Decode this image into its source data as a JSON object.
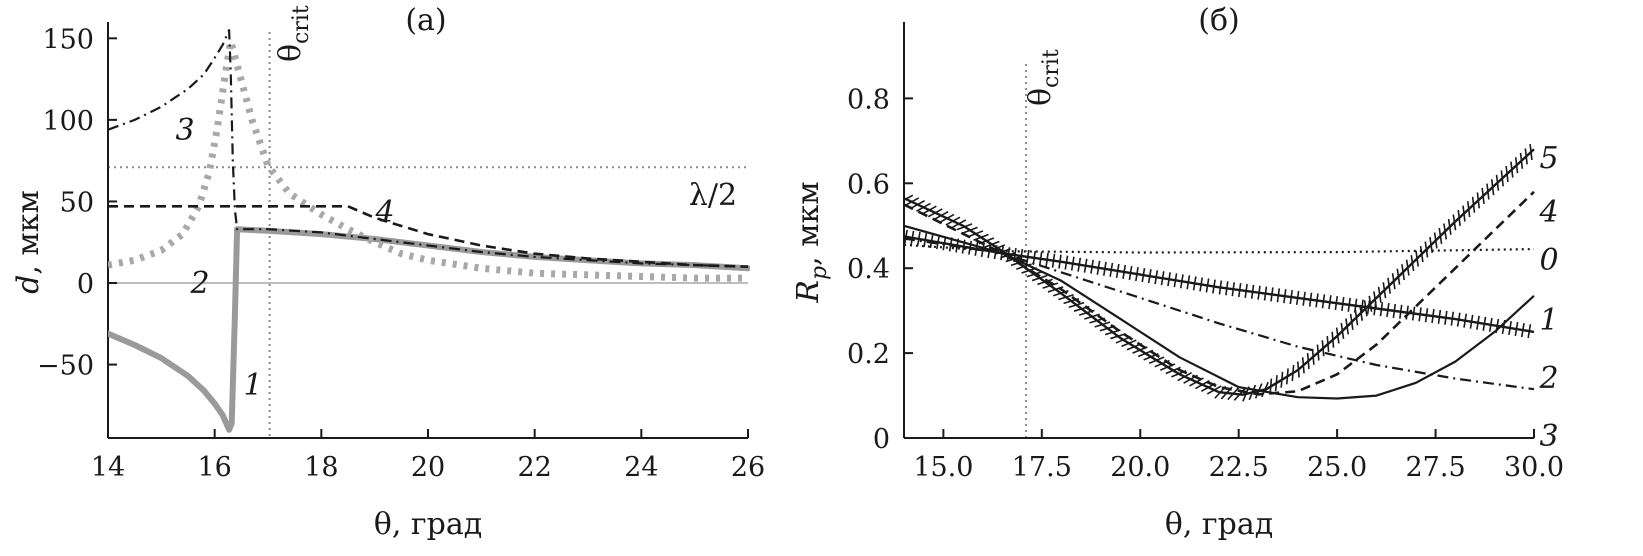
{
  "chart_data": [
    {
      "panel": "(a)",
      "type": "line",
      "xlabel": "θ, град",
      "ylabel_symbol": "d",
      "ylabel_unit": ", мкм",
      "xlim": [
        14,
        26
      ],
      "ylim": [
        -95,
        160
      ],
      "xticks": [
        "14",
        "16",
        "18",
        "20",
        "22",
        "24",
        "26"
      ],
      "yticks": [
        "150",
        "100",
        "50",
        "0",
        "−50"
      ],
      "xtick_values": [
        14,
        16,
        18,
        20,
        22,
        24,
        26
      ],
      "ytick_values": [
        150,
        100,
        50,
        0,
        -50
      ],
      "critical_angle": {
        "label_main": "θ",
        "label_sub": "crit",
        "x": 17.03
      },
      "reference_line": {
        "label": "λ/2",
        "y": 71
      },
      "zero_line": {
        "y": 0,
        "color": "#bdbdbd"
      },
      "series": [
        {
          "name": "1",
          "style": "solid-thick",
          "color": "#9a9a9a",
          "points": [
            [
              14,
              -31
            ],
            [
              14.5,
              -38
            ],
            [
              15.0,
              -46
            ],
            [
              15.5,
              -57
            ],
            [
              15.8,
              -66
            ],
            [
              16.0,
              -74
            ],
            [
              16.15,
              -81
            ],
            [
              16.27,
              -90
            ],
            [
              16.32,
              -86
            ],
            [
              16.38,
              -20
            ],
            [
              16.42,
              33
            ],
            [
              17.0,
              32
            ],
            [
              18.0,
              30
            ],
            [
              19.0,
              27
            ],
            [
              20.0,
              23
            ],
            [
              21.0,
              19
            ],
            [
              22.0,
              16
            ],
            [
              23.0,
              14
            ],
            [
              24.0,
              12
            ],
            [
              25.0,
              11
            ],
            [
              26.0,
              9
            ]
          ]
        },
        {
          "name": "2",
          "style": "dotted-thick",
          "color": "#a8a8a8",
          "points": [
            [
              14,
              11
            ],
            [
              14.5,
              14
            ],
            [
              15.0,
              20
            ],
            [
              15.4,
              30
            ],
            [
              15.7,
              47
            ],
            [
              15.9,
              68
            ],
            [
              16.05,
              95
            ],
            [
              16.2,
              128
            ],
            [
              16.3,
              148
            ],
            [
              16.45,
              130
            ],
            [
              16.7,
              100
            ],
            [
              17.0,
              72
            ],
            [
              17.4,
              55
            ],
            [
              18.0,
              42
            ],
            [
              18.5,
              33
            ],
            [
              19.0,
              25
            ],
            [
              19.5,
              18
            ],
            [
              20.0,
              14
            ],
            [
              21.0,
              9
            ],
            [
              22.0,
              6
            ],
            [
              23.0,
              5
            ],
            [
              24.0,
              4
            ],
            [
              25.0,
              3
            ],
            [
              26.0,
              3
            ]
          ]
        },
        {
          "name": "3",
          "style": "dash-dot",
          "color": "#1a1a1a",
          "points": [
            [
              14,
              94
            ],
            [
              14.5,
              100
            ],
            [
              15.0,
              108
            ],
            [
              15.5,
              119
            ],
            [
              15.8,
              128
            ],
            [
              16.0,
              138
            ],
            [
              16.15,
              146
            ],
            [
              16.27,
              155
            ],
            [
              16.3,
              130
            ],
            [
              16.34,
              75
            ],
            [
              16.38,
              45
            ],
            [
              16.42,
              33
            ],
            [
              17.0,
              33
            ],
            [
              18.0,
              31
            ],
            [
              19.0,
              27
            ],
            [
              20.0,
              23
            ],
            [
              21.0,
              19
            ],
            [
              22.0,
              16
            ],
            [
              23.0,
              14
            ],
            [
              24.0,
              12
            ],
            [
              25.0,
              11
            ],
            [
              26.0,
              10
            ]
          ]
        },
        {
          "name": "4",
          "style": "dashed",
          "color": "#1a1a1a",
          "points": [
            [
              14,
              47
            ],
            [
              18.5,
              47
            ],
            [
              19.0,
              40
            ],
            [
              20.0,
              30
            ],
            [
              21.0,
              23
            ],
            [
              22.0,
              18
            ],
            [
              23.0,
              15
            ],
            [
              24.0,
              13
            ],
            [
              25.0,
              11
            ],
            [
              26.0,
              10
            ]
          ]
        }
      ]
    },
    {
      "panel": "(б)",
      "type": "line",
      "xlabel": "θ, град",
      "ylabel_symbol": "R",
      "ylabel_sub": "p",
      "ylabel_unit": ", мкм",
      "xlim": [
        14,
        30
      ],
      "ylim": [
        0,
        0.98
      ],
      "xticks": [
        "15.0",
        "17.5",
        "20.0",
        "22.5",
        "25.0",
        "27.5",
        "30.0"
      ],
      "yticks": [
        "0.8",
        "0.6",
        "0.4",
        "0.2",
        "0"
      ],
      "xtick_values": [
        15,
        17.5,
        20,
        22.5,
        25,
        27.5,
        30
      ],
      "ytick_values": [
        0.8,
        0.6,
        0.4,
        0.2,
        0
      ],
      "critical_angle": {
        "label_main": "θ",
        "label_sub": "crit",
        "x": 17.1
      },
      "series": [
        {
          "name": "0",
          "style": "dotted",
          "color": "#1a1a1a",
          "points": [
            [
              14,
              0.455
            ],
            [
              16.5,
              0.44
            ],
            [
              20,
              0.437
            ],
            [
              25,
              0.438
            ],
            [
              30,
              0.445
            ]
          ]
        },
        {
          "name": "1",
          "style": "solid",
          "color": "#1a1a1a",
          "points": [
            [
              14,
              0.5
            ],
            [
              16.5,
              0.435
            ],
            [
              18,
              0.37
            ],
            [
              19.5,
              0.28
            ],
            [
              21,
              0.19
            ],
            [
              22.5,
              0.12
            ],
            [
              24,
              0.096
            ],
            [
              25,
              0.093
            ],
            [
              26,
              0.1
            ],
            [
              27,
              0.13
            ],
            [
              28,
              0.18
            ],
            [
              29,
              0.25
            ],
            [
              30,
              0.335
            ]
          ]
        },
        {
          "name": "2",
          "style": "plus-line",
          "color": "#1a1a1a",
          "points": [
            [
              14,
              0.475
            ],
            [
              16.5,
              0.435
            ],
            [
              18,
              0.415
            ],
            [
              20,
              0.385
            ],
            [
              22,
              0.355
            ],
            [
              24,
              0.33
            ],
            [
              26,
              0.305
            ],
            [
              28,
              0.28
            ],
            [
              30,
              0.25
            ]
          ]
        },
        {
          "name": "3",
          "style": "dash-dot",
          "color": "#1a1a1a",
          "points": [
            [
              14,
              0.47
            ],
            [
              16.5,
              0.435
            ],
            [
              18,
              0.39
            ],
            [
              20,
              0.33
            ],
            [
              22,
              0.27
            ],
            [
              24,
              0.215
            ],
            [
              26,
              0.172
            ],
            [
              28,
              0.14
            ],
            [
              30,
              0.115
            ]
          ]
        },
        {
          "name": "4",
          "style": "dashed",
          "color": "#1a1a1a",
          "points": [
            [
              14,
              0.55
            ],
            [
              16.5,
              0.435
            ],
            [
              18,
              0.35
            ],
            [
              19.5,
              0.25
            ],
            [
              21,
              0.16
            ],
            [
              22,
              0.12
            ],
            [
              23,
              0.103
            ],
            [
              24,
              0.11
            ],
            [
              25,
              0.15
            ],
            [
              26,
              0.22
            ],
            [
              27,
              0.31
            ],
            [
              28,
              0.4
            ],
            [
              29,
              0.49
            ],
            [
              30,
              0.58
            ]
          ]
        },
        {
          "name": "5",
          "style": "cross-line",
          "color": "#1a1a1a",
          "points": [
            [
              14,
              0.565
            ],
            [
              15.5,
              0.5
            ],
            [
              16.5,
              0.44
            ],
            [
              18,
              0.34
            ],
            [
              19.5,
              0.235
            ],
            [
              21,
              0.15
            ],
            [
              22,
              0.108
            ],
            [
              22.6,
              0.102
            ],
            [
              23.2,
              0.115
            ],
            [
              24,
              0.16
            ],
            [
              25,
              0.24
            ],
            [
              26,
              0.33
            ],
            [
              27,
              0.42
            ],
            [
              28,
              0.51
            ],
            [
              29,
              0.595
            ],
            [
              30,
              0.68
            ]
          ]
        }
      ]
    }
  ]
}
